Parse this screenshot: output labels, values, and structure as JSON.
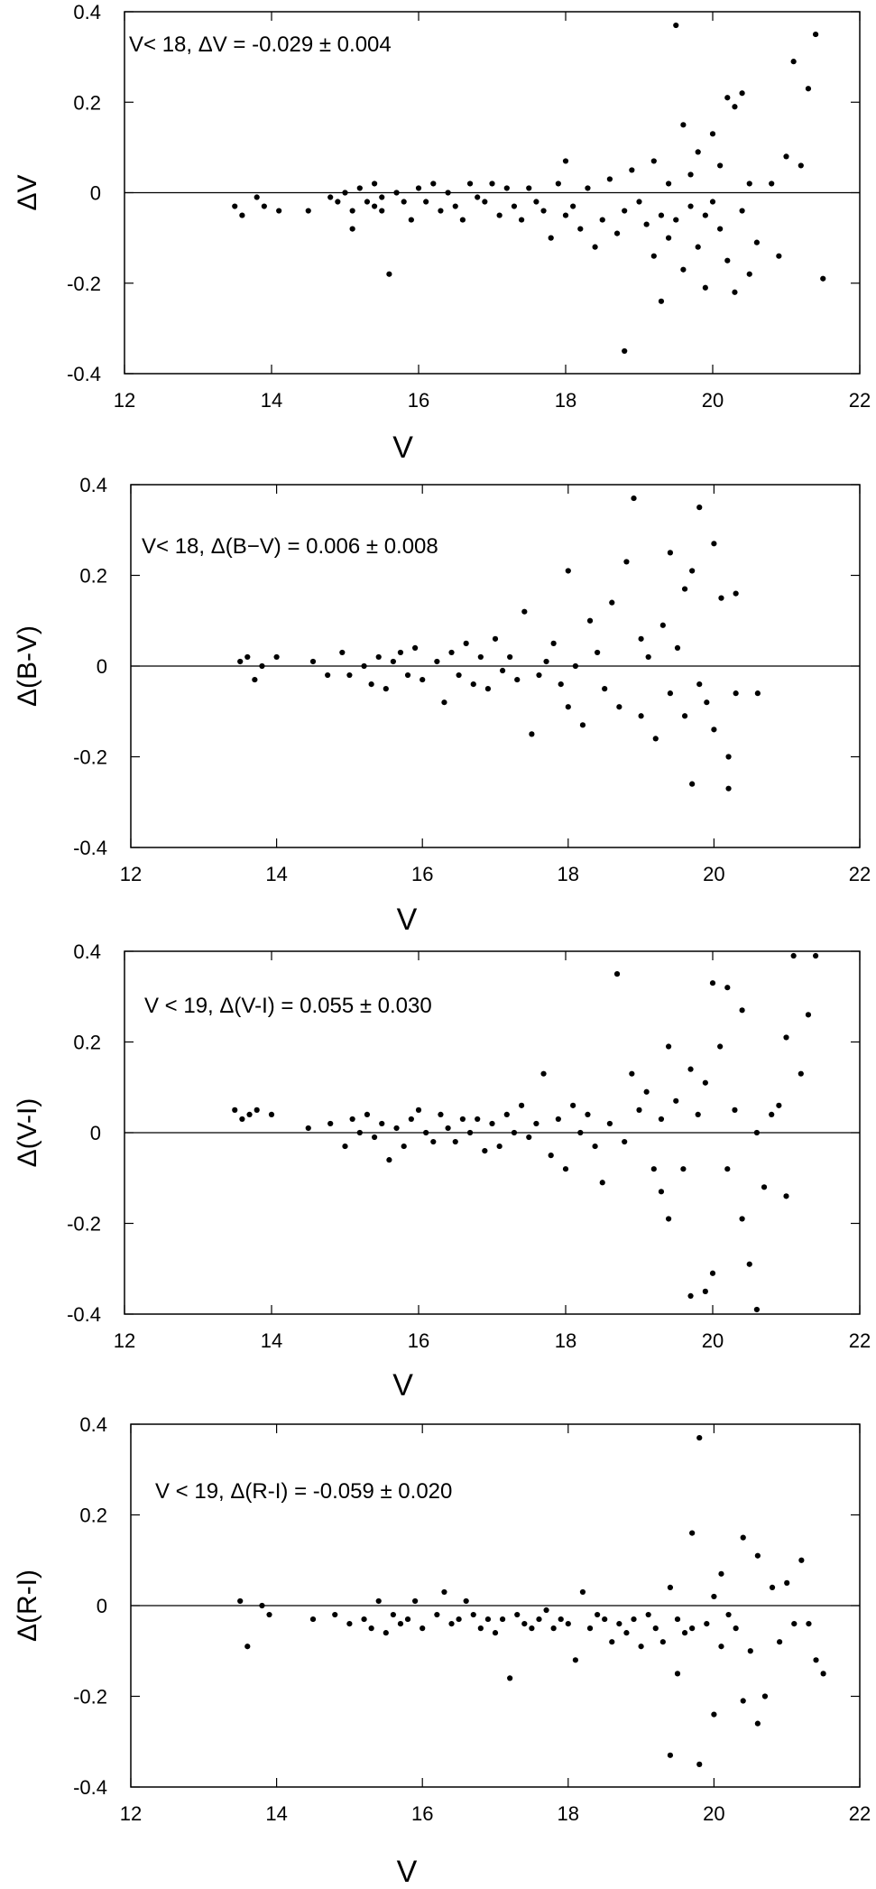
{
  "chart_data": [
    {
      "type": "scatter",
      "xlabel": "V",
      "ylabel": "ΔV",
      "annotation": "V< 18, ΔV = -0.029 ± 0.004",
      "xlim": [
        12,
        22
      ],
      "ylim": [
        -0.4,
        0.4
      ],
      "xticks": [
        "12",
        "14",
        "16",
        "18",
        "20",
        "22"
      ],
      "yticks": [
        "0.4",
        "0.2",
        "0",
        "-0.2",
        "-0.4"
      ],
      "reference_line": 0,
      "points": [
        [
          13.5,
          -0.03
        ],
        [
          13.6,
          -0.05
        ],
        [
          13.8,
          -0.01
        ],
        [
          13.9,
          -0.03
        ],
        [
          14.1,
          -0.04
        ],
        [
          14.5,
          -0.04
        ],
        [
          14.8,
          -0.01
        ],
        [
          14.9,
          -0.02
        ],
        [
          15.0,
          0.0
        ],
        [
          15.1,
          -0.04
        ],
        [
          15.1,
          -0.08
        ],
        [
          15.2,
          0.01
        ],
        [
          15.3,
          -0.02
        ],
        [
          15.4,
          -0.03
        ],
        [
          15.4,
          0.02
        ],
        [
          15.5,
          -0.01
        ],
        [
          15.5,
          -0.04
        ],
        [
          15.6,
          -0.18
        ],
        [
          15.7,
          0.0
        ],
        [
          15.8,
          -0.02
        ],
        [
          15.9,
          -0.06
        ],
        [
          16.0,
          0.01
        ],
        [
          16.1,
          -0.02
        ],
        [
          16.2,
          0.02
        ],
        [
          16.3,
          -0.04
        ],
        [
          16.4,
          0.0
        ],
        [
          16.5,
          -0.03
        ],
        [
          16.6,
          -0.06
        ],
        [
          16.7,
          0.02
        ],
        [
          16.8,
          -0.01
        ],
        [
          16.9,
          -0.02
        ],
        [
          17.0,
          0.02
        ],
        [
          17.1,
          -0.05
        ],
        [
          17.2,
          0.01
        ],
        [
          17.3,
          -0.03
        ],
        [
          17.4,
          -0.06
        ],
        [
          17.5,
          0.01
        ],
        [
          17.6,
          -0.02
        ],
        [
          17.7,
          -0.04
        ],
        [
          17.8,
          -0.1
        ],
        [
          17.9,
          0.02
        ],
        [
          18.0,
          0.07
        ],
        [
          18.0,
          -0.05
        ],
        [
          18.1,
          -0.03
        ],
        [
          18.2,
          -0.08
        ],
        [
          18.3,
          0.01
        ],
        [
          18.4,
          -0.12
        ],
        [
          18.5,
          -0.06
        ],
        [
          18.6,
          0.03
        ],
        [
          18.7,
          -0.09
        ],
        [
          18.8,
          -0.35
        ],
        [
          18.8,
          -0.04
        ],
        [
          18.9,
          0.05
        ],
        [
          19.0,
          -0.02
        ],
        [
          19.1,
          -0.07
        ],
        [
          19.2,
          -0.14
        ],
        [
          19.2,
          0.07
        ],
        [
          19.3,
          -0.24
        ],
        [
          19.3,
          -0.05
        ],
        [
          19.4,
          0.02
        ],
        [
          19.4,
          -0.1
        ],
        [
          19.5,
          0.37
        ],
        [
          19.5,
          -0.06
        ],
        [
          19.6,
          0.15
        ],
        [
          19.6,
          -0.17
        ],
        [
          19.7,
          0.04
        ],
        [
          19.7,
          -0.03
        ],
        [
          19.8,
          -0.12
        ],
        [
          19.8,
          0.09
        ],
        [
          19.9,
          -0.05
        ],
        [
          19.9,
          -0.21
        ],
        [
          20.0,
          0.13
        ],
        [
          20.0,
          -0.02
        ],
        [
          20.1,
          -0.08
        ],
        [
          20.1,
          0.06
        ],
        [
          20.2,
          0.21
        ],
        [
          20.2,
          -0.15
        ],
        [
          20.3,
          -0.22
        ],
        [
          20.3,
          0.19
        ],
        [
          20.4,
          0.22
        ],
        [
          20.4,
          -0.04
        ],
        [
          20.5,
          0.02
        ],
        [
          20.5,
          -0.18
        ],
        [
          20.6,
          -0.11
        ],
        [
          20.8,
          0.02
        ],
        [
          20.9,
          -0.14
        ],
        [
          21.0,
          0.08
        ],
        [
          21.1,
          0.29
        ],
        [
          21.2,
          0.06
        ],
        [
          21.3,
          0.23
        ],
        [
          21.4,
          0.35
        ],
        [
          21.5,
          -0.19
        ]
      ]
    },
    {
      "type": "scatter",
      "xlabel": "V",
      "ylabel": "Δ(B-V)",
      "annotation": "V< 18, Δ(B−V) = 0.006 ± 0.008",
      "xlim": [
        12,
        22
      ],
      "ylim": [
        -0.4,
        0.4
      ],
      "xticks": [
        "12",
        "14",
        "16",
        "18",
        "20",
        "22"
      ],
      "yticks": [
        "0.4",
        "0.2",
        "0",
        "-0.2",
        "-0.4"
      ],
      "reference_line": 0,
      "points": [
        [
          13.5,
          0.01
        ],
        [
          13.6,
          0.02
        ],
        [
          13.7,
          -0.03
        ],
        [
          13.8,
          0.0
        ],
        [
          14.0,
          0.02
        ],
        [
          14.5,
          0.01
        ],
        [
          14.7,
          -0.02
        ],
        [
          14.9,
          0.03
        ],
        [
          15.0,
          -0.02
        ],
        [
          15.2,
          0.0
        ],
        [
          15.3,
          -0.04
        ],
        [
          15.4,
          0.02
        ],
        [
          15.5,
          -0.05
        ],
        [
          15.6,
          0.01
        ],
        [
          15.7,
          0.03
        ],
        [
          15.8,
          -0.02
        ],
        [
          15.9,
          0.04
        ],
        [
          16.0,
          -0.03
        ],
        [
          16.2,
          0.01
        ],
        [
          16.3,
          -0.08
        ],
        [
          16.4,
          0.03
        ],
        [
          16.5,
          -0.02
        ],
        [
          16.6,
          0.05
        ],
        [
          16.7,
          -0.04
        ],
        [
          16.8,
          0.02
        ],
        [
          16.9,
          -0.05
        ],
        [
          17.0,
          0.06
        ],
        [
          17.1,
          -0.01
        ],
        [
          17.2,
          0.02
        ],
        [
          17.3,
          -0.03
        ],
        [
          17.4,
          0.12
        ],
        [
          17.5,
          -0.15
        ],
        [
          17.6,
          -0.02
        ],
        [
          17.7,
          0.01
        ],
        [
          17.8,
          0.05
        ],
        [
          17.9,
          -0.04
        ],
        [
          18.0,
          0.21
        ],
        [
          18.0,
          -0.09
        ],
        [
          18.1,
          0.0
        ],
        [
          18.2,
          -0.13
        ],
        [
          18.3,
          0.1
        ],
        [
          18.4,
          0.03
        ],
        [
          18.5,
          -0.05
        ],
        [
          18.6,
          0.14
        ],
        [
          18.7,
          -0.09
        ],
        [
          18.8,
          0.23
        ],
        [
          18.9,
          0.37
        ],
        [
          19.0,
          0.06
        ],
        [
          19.0,
          -0.11
        ],
        [
          19.1,
          0.02
        ],
        [
          19.2,
          -0.16
        ],
        [
          19.3,
          0.09
        ],
        [
          19.4,
          0.25
        ],
        [
          19.4,
          -0.06
        ],
        [
          19.5,
          0.04
        ],
        [
          19.6,
          0.17
        ],
        [
          19.6,
          -0.11
        ],
        [
          19.7,
          -0.26
        ],
        [
          19.7,
          0.21
        ],
        [
          19.8,
          0.35
        ],
        [
          19.8,
          -0.04
        ],
        [
          19.9,
          -0.08
        ],
        [
          20.0,
          0.27
        ],
        [
          20.0,
          -0.14
        ],
        [
          20.1,
          0.15
        ],
        [
          20.2,
          -0.27
        ],
        [
          20.2,
          -0.2
        ],
        [
          20.3,
          0.16
        ],
        [
          20.3,
          -0.06
        ],
        [
          20.6,
          -0.06
        ]
      ]
    },
    {
      "type": "scatter",
      "xlabel": "V",
      "ylabel": "Δ(V-I)",
      "annotation": "V < 19, Δ(V-I) = 0.055 ± 0.030",
      "xlim": [
        12,
        22
      ],
      "ylim": [
        -0.4,
        0.4
      ],
      "xticks": [
        "12",
        "14",
        "16",
        "18",
        "20",
        "22"
      ],
      "yticks": [
        "0.4",
        "0.2",
        "0",
        "-0.2",
        "-0.4"
      ],
      "reference_line": 0,
      "points": [
        [
          13.5,
          0.05
        ],
        [
          13.6,
          0.03
        ],
        [
          13.7,
          0.04
        ],
        [
          13.8,
          0.05
        ],
        [
          14.0,
          0.04
        ],
        [
          14.5,
          0.01
        ],
        [
          14.8,
          0.02
        ],
        [
          15.0,
          -0.03
        ],
        [
          15.1,
          0.03
        ],
        [
          15.2,
          0.0
        ],
        [
          15.3,
          0.04
        ],
        [
          15.4,
          -0.01
        ],
        [
          15.5,
          0.02
        ],
        [
          15.6,
          -0.06
        ],
        [
          15.7,
          0.01
        ],
        [
          15.8,
          -0.03
        ],
        [
          15.9,
          0.03
        ],
        [
          16.0,
          0.05
        ],
        [
          16.1,
          0.0
        ],
        [
          16.2,
          -0.02
        ],
        [
          16.3,
          0.04
        ],
        [
          16.4,
          0.01
        ],
        [
          16.5,
          -0.02
        ],
        [
          16.6,
          0.03
        ],
        [
          16.7,
          0.0
        ],
        [
          16.8,
          0.03
        ],
        [
          16.9,
          -0.04
        ],
        [
          17.0,
          0.02
        ],
        [
          17.1,
          -0.03
        ],
        [
          17.2,
          0.04
        ],
        [
          17.3,
          0.0
        ],
        [
          17.4,
          0.06
        ],
        [
          17.5,
          -0.01
        ],
        [
          17.6,
          0.02
        ],
        [
          17.7,
          0.13
        ],
        [
          17.8,
          -0.05
        ],
        [
          17.9,
          0.03
        ],
        [
          18.0,
          -0.08
        ],
        [
          18.1,
          0.06
        ],
        [
          18.2,
          0.0
        ],
        [
          18.3,
          0.04
        ],
        [
          18.4,
          -0.03
        ],
        [
          18.5,
          -0.11
        ],
        [
          18.6,
          0.02
        ],
        [
          18.7,
          0.35
        ],
        [
          18.8,
          -0.02
        ],
        [
          18.9,
          0.13
        ],
        [
          19.0,
          0.05
        ],
        [
          19.1,
          0.09
        ],
        [
          19.2,
          -0.08
        ],
        [
          19.3,
          -0.13
        ],
        [
          19.3,
          0.03
        ],
        [
          19.4,
          -0.19
        ],
        [
          19.4,
          0.19
        ],
        [
          19.5,
          0.07
        ],
        [
          19.6,
          -0.08
        ],
        [
          19.7,
          -0.36
        ],
        [
          19.7,
          0.14
        ],
        [
          19.8,
          0.04
        ],
        [
          19.9,
          -0.35
        ],
        [
          19.9,
          0.11
        ],
        [
          20.0,
          -0.31
        ],
        [
          20.0,
          0.33
        ],
        [
          20.1,
          0.19
        ],
        [
          20.2,
          0.32
        ],
        [
          20.2,
          -0.08
        ],
        [
          20.3,
          0.05
        ],
        [
          20.4,
          -0.19
        ],
        [
          20.4,
          0.27
        ],
        [
          20.5,
          -0.29
        ],
        [
          20.6,
          0.0
        ],
        [
          20.6,
          -0.39
        ],
        [
          20.7,
          -0.12
        ],
        [
          20.8,
          0.04
        ],
        [
          20.9,
          0.06
        ],
        [
          21.0,
          0.21
        ],
        [
          21.0,
          -0.14
        ],
        [
          21.1,
          0.39
        ],
        [
          21.2,
          0.13
        ],
        [
          21.3,
          0.26
        ],
        [
          21.4,
          0.39
        ]
      ]
    },
    {
      "type": "scatter",
      "xlabel": "V",
      "ylabel": "Δ(R-I)",
      "annotation": "V < 19, Δ(R-I) = -0.059 ± 0.020",
      "xlim": [
        12,
        22
      ],
      "ylim": [
        -0.4,
        0.4
      ],
      "xticks": [
        "12",
        "14",
        "16",
        "18",
        "20",
        "22"
      ],
      "yticks": [
        "0.4",
        "0.2",
        "0",
        "-0.2",
        "-0.4"
      ],
      "reference_line": 0,
      "points": [
        [
          13.5,
          0.01
        ],
        [
          13.6,
          -0.09
        ],
        [
          13.8,
          0.0
        ],
        [
          13.9,
          -0.02
        ],
        [
          14.5,
          -0.03
        ],
        [
          14.8,
          -0.02
        ],
        [
          15.0,
          -0.04
        ],
        [
          15.2,
          -0.03
        ],
        [
          15.3,
          -0.05
        ],
        [
          15.4,
          0.01
        ],
        [
          15.5,
          -0.06
        ],
        [
          15.6,
          -0.02
        ],
        [
          15.7,
          -0.04
        ],
        [
          15.8,
          -0.03
        ],
        [
          15.9,
          0.01
        ],
        [
          16.0,
          -0.05
        ],
        [
          16.2,
          -0.02
        ],
        [
          16.3,
          0.03
        ],
        [
          16.4,
          -0.04
        ],
        [
          16.5,
          -0.03
        ],
        [
          16.6,
          0.01
        ],
        [
          16.7,
          -0.02
        ],
        [
          16.8,
          -0.05
        ],
        [
          16.9,
          -0.03
        ],
        [
          17.0,
          -0.06
        ],
        [
          17.1,
          -0.03
        ],
        [
          17.2,
          -0.16
        ],
        [
          17.3,
          -0.02
        ],
        [
          17.4,
          -0.04
        ],
        [
          17.5,
          -0.05
        ],
        [
          17.6,
          -0.03
        ],
        [
          17.7,
          -0.01
        ],
        [
          17.8,
          -0.05
        ],
        [
          17.9,
          -0.03
        ],
        [
          18.0,
          -0.04
        ],
        [
          18.1,
          -0.12
        ],
        [
          18.2,
          0.03
        ],
        [
          18.3,
          -0.05
        ],
        [
          18.4,
          -0.02
        ],
        [
          18.5,
          -0.03
        ],
        [
          18.6,
          -0.08
        ],
        [
          18.7,
          -0.04
        ],
        [
          18.8,
          -0.06
        ],
        [
          18.9,
          -0.03
        ],
        [
          19.0,
          -0.09
        ],
        [
          19.1,
          -0.02
        ],
        [
          19.2,
          -0.05
        ],
        [
          19.3,
          -0.08
        ],
        [
          19.4,
          -0.33
        ],
        [
          19.4,
          0.04
        ],
        [
          19.5,
          -0.15
        ],
        [
          19.5,
          -0.03
        ],
        [
          19.6,
          -0.06
        ],
        [
          19.7,
          0.16
        ],
        [
          19.7,
          -0.05
        ],
        [
          19.8,
          0.37
        ],
        [
          19.8,
          -0.35
        ],
        [
          19.9,
          -0.04
        ],
        [
          20.0,
          -0.24
        ],
        [
          20.0,
          0.02
        ],
        [
          20.1,
          -0.09
        ],
        [
          20.1,
          0.07
        ],
        [
          20.2,
          -0.02
        ],
        [
          20.3,
          -0.05
        ],
        [
          20.4,
          0.15
        ],
        [
          20.4,
          -0.21
        ],
        [
          20.5,
          -0.1
        ],
        [
          20.6,
          -0.26
        ],
        [
          20.6,
          0.11
        ],
        [
          20.7,
          -0.2
        ],
        [
          20.8,
          0.04
        ],
        [
          20.9,
          -0.08
        ],
        [
          21.0,
          0.05
        ],
        [
          21.1,
          -0.04
        ],
        [
          21.2,
          0.1
        ],
        [
          21.3,
          -0.04
        ],
        [
          21.4,
          -0.12
        ],
        [
          21.5,
          -0.15
        ]
      ]
    }
  ]
}
